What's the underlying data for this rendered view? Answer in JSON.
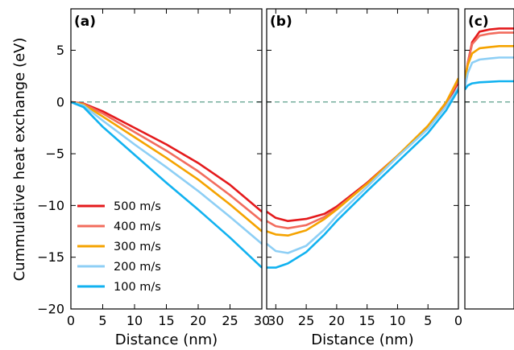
{
  "chart_data": {
    "type": "line",
    "ylabel": "Cummulative heat exchange (eV)",
    "ylim": [
      -20,
      9
    ],
    "yticks": [
      5,
      0,
      -5,
      -10,
      -15,
      -20
    ],
    "ytick_labels": [
      "5",
      "0",
      "−5",
      "−10",
      "−15",
      "−20"
    ],
    "reference_line": {
      "y": 0,
      "style": "dashed",
      "color": "#5b9e8a"
    },
    "legend": {
      "placement": "lower-left of panel (a)"
    },
    "series": [
      {
        "name": "500 m/s",
        "color": "#e41a1c"
      },
      {
        "name": "400 m/s",
        "color": "#f26c5d"
      },
      {
        "name": "300 m/s",
        "color": "#f5a300"
      },
      {
        "name": "200 m/s",
        "color": "#8ecff5"
      },
      {
        "name": "100 m/s",
        "color": "#11b2f0"
      }
    ],
    "panels": [
      {
        "label": "(a)",
        "xlabel": "Distance (nm)",
        "xlim": [
          0,
          30
        ],
        "xticks": [
          0,
          5,
          10,
          15,
          20,
          25,
          30
        ],
        "xtick_labels": [
          "0",
          "5",
          "10",
          "15",
          "20",
          "25",
          "30"
        ],
        "data": [
          [
            [
              0,
              0
            ],
            [
              2,
              -0.15
            ],
            [
              5,
              -0.9
            ],
            [
              10,
              -2.5
            ],
            [
              15,
              -4.1
            ],
            [
              20,
              -5.9
            ],
            [
              25,
              -8.0
            ],
            [
              30,
              -10.6
            ]
          ],
          [
            [
              0,
              0
            ],
            [
              2,
              -0.2
            ],
            [
              5,
              -1.1
            ],
            [
              10,
              -2.9
            ],
            [
              15,
              -4.7
            ],
            [
              20,
              -6.7
            ],
            [
              25,
              -9.0
            ],
            [
              30,
              -11.5
            ]
          ],
          [
            [
              0,
              0
            ],
            [
              2,
              -0.25
            ],
            [
              5,
              -1.4
            ],
            [
              10,
              -3.4
            ],
            [
              15,
              -5.4
            ],
            [
              20,
              -7.5
            ],
            [
              25,
              -9.9
            ],
            [
              30,
              -12.5
            ]
          ],
          [
            [
              0,
              0
            ],
            [
              2,
              -0.35
            ],
            [
              5,
              -1.8
            ],
            [
              10,
              -4.1
            ],
            [
              15,
              -6.3
            ],
            [
              20,
              -8.6
            ],
            [
              25,
              -11.1
            ],
            [
              30,
              -13.7
            ]
          ],
          [
            [
              0,
              0
            ],
            [
              2,
              -0.5
            ],
            [
              5,
              -2.4
            ],
            [
              10,
              -5.1
            ],
            [
              15,
              -7.8
            ],
            [
              20,
              -10.4
            ],
            [
              25,
              -13.1
            ],
            [
              30,
              -16.0
            ]
          ]
        ]
      },
      {
        "label": "(b)",
        "xlabel": "Distance (nm)",
        "xlim": [
          31.5,
          0
        ],
        "xticks": [
          30,
          25,
          20,
          15,
          10,
          5,
          0
        ],
        "xtick_labels": [
          "30",
          "25",
          "20",
          "15",
          "10",
          "5",
          "0"
        ],
        "data": [
          [
            [
              31.5,
              -10.6
            ],
            [
              30,
              -11.2
            ],
            [
              28,
              -11.5
            ],
            [
              25,
              -11.3
            ],
            [
              22,
              -10.8
            ],
            [
              20,
              -10.1
            ],
            [
              15,
              -7.8
            ],
            [
              10,
              -5.2
            ],
            [
              5,
              -2.4
            ],
            [
              2,
              -0.2
            ],
            [
              0,
              1.9
            ]
          ],
          [
            [
              31.5,
              -11.5
            ],
            [
              30,
              -12.0
            ],
            [
              28,
              -12.2
            ],
            [
              25,
              -11.9
            ],
            [
              22,
              -11.1
            ],
            [
              20,
              -10.3
            ],
            [
              15,
              -7.9
            ],
            [
              10,
              -5.2
            ],
            [
              5,
              -2.4
            ],
            [
              2,
              -0.1
            ],
            [
              0,
              2.1
            ]
          ],
          [
            [
              31.5,
              -12.5
            ],
            [
              30,
              -12.8
            ],
            [
              28,
              -12.9
            ],
            [
              25,
              -12.4
            ],
            [
              22,
              -11.3
            ],
            [
              20,
              -10.4
            ],
            [
              15,
              -7.9
            ],
            [
              10,
              -5.2
            ],
            [
              5,
              -2.3
            ],
            [
              2,
              0.0
            ],
            [
              0,
              2.3
            ]
          ],
          [
            [
              31.5,
              -13.7
            ],
            [
              30,
              -14.4
            ],
            [
              28,
              -14.6
            ],
            [
              25,
              -13.9
            ],
            [
              22,
              -12.3
            ],
            [
              20,
              -11.0
            ],
            [
              15,
              -8.2
            ],
            [
              10,
              -5.3
            ],
            [
              5,
              -2.6
            ],
            [
              2,
              -0.4
            ],
            [
              0,
              1.4
            ]
          ],
          [
            [
              31.5,
              -16.0
            ],
            [
              30,
              -16.0
            ],
            [
              28,
              -15.6
            ],
            [
              25,
              -14.5
            ],
            [
              22,
              -12.8
            ],
            [
              20,
              -11.5
            ],
            [
              15,
              -8.6
            ],
            [
              10,
              -5.8
            ],
            [
              5,
              -3.0
            ],
            [
              2,
              -0.8
            ],
            [
              0,
              1.2
            ]
          ]
        ]
      },
      {
        "label": "(c)",
        "xlabel": "",
        "xlim": [
          0,
          10
        ],
        "xticks": [],
        "xtick_labels": [],
        "data": [
          [
            [
              0,
              1.9
            ],
            [
              0.6,
              3.8
            ],
            [
              1.5,
              5.8
            ],
            [
              3,
              6.8
            ],
            [
              5,
              7.0
            ],
            [
              7,
              7.1
            ],
            [
              10,
              7.1
            ]
          ],
          [
            [
              0,
              2.1
            ],
            [
              0.6,
              3.8
            ],
            [
              1.5,
              5.6
            ],
            [
              3,
              6.4
            ],
            [
              5,
              6.6
            ],
            [
              7,
              6.7
            ],
            [
              10,
              6.7
            ]
          ],
          [
            [
              0,
              2.3
            ],
            [
              0.6,
              3.6
            ],
            [
              1.5,
              4.7
            ],
            [
              3,
              5.2
            ],
            [
              5,
              5.3
            ],
            [
              7,
              5.4
            ],
            [
              10,
              5.4
            ]
          ],
          [
            [
              0,
              1.4
            ],
            [
              0.6,
              2.8
            ],
            [
              1.5,
              3.8
            ],
            [
              3,
              4.1
            ],
            [
              5,
              4.2
            ],
            [
              7,
              4.3
            ],
            [
              10,
              4.3
            ]
          ],
          [
            [
              0,
              1.2
            ],
            [
              0.6,
              1.6
            ],
            [
              1.5,
              1.8
            ],
            [
              3,
              1.9
            ],
            [
              5,
              1.95
            ],
            [
              7,
              2.0
            ],
            [
              10,
              2.0
            ]
          ]
        ]
      }
    ]
  }
}
